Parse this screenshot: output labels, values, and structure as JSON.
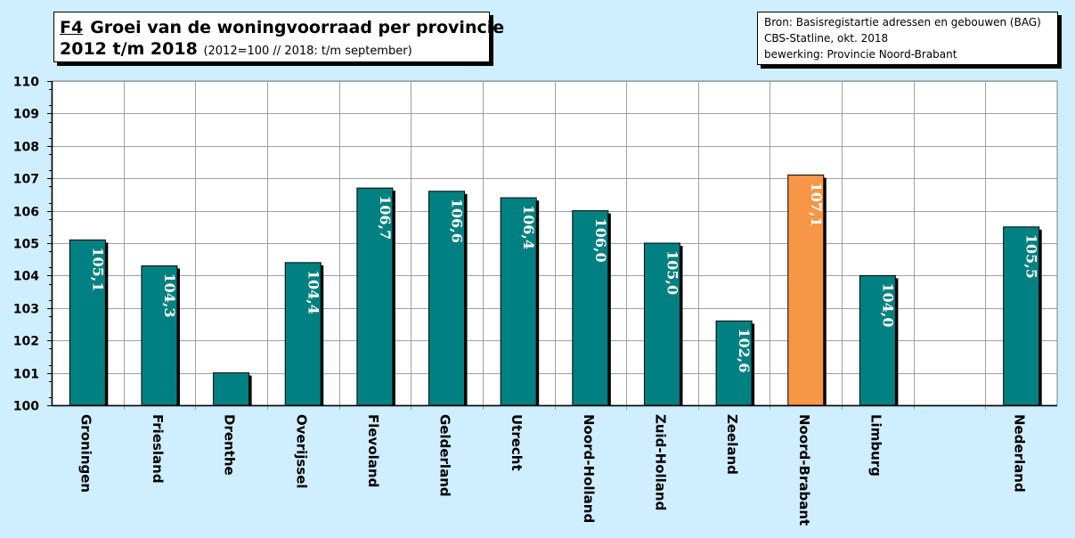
{
  "title": {
    "code": "F4",
    "line1": "Groei van de woningvoorraad per provincie",
    "line2": "2012 t/m 2018",
    "subtitle": "(2012=100  //  2018: t/m september)"
  },
  "source": {
    "lines": [
      "Bron: Basisregistartie adressen en gebouwen (BAG)",
      "CBS-Statline, okt. 2018",
      "bewerking: Provincie Noord-Brabant"
    ]
  },
  "colors": {
    "bar": "#008080",
    "highlight": "#f79646",
    "background": "#cfeeff",
    "plot": "#ffffff"
  },
  "chart_data": {
    "type": "bar",
    "categories": [
      "Groningen",
      "Friesland",
      "Drenthe",
      "Overijssel",
      "Flevoland",
      "Gelderland",
      "Utrecht",
      "Noord-Holland",
      "Zuid-Holland",
      "Zeeland",
      "Noord-Brabant",
      "Limburg",
      "",
      "Nederland"
    ],
    "values": [
      105.1,
      104.3,
      101.0,
      104.4,
      106.7,
      106.6,
      106.4,
      106.0,
      105.0,
      102.6,
      107.1,
      104.0,
      null,
      105.5
    ],
    "labels": [
      "105,1",
      "104,3",
      "",
      "104,4",
      "106,7",
      "106,6",
      "106,4",
      "106,0",
      "105,0",
      "102,6",
      "107,1",
      "104,0",
      "",
      "105,5"
    ],
    "highlight": "Noord-Brabant",
    "ylim": [
      100,
      110
    ],
    "yticks": [
      "100",
      "101",
      "102",
      "103",
      "104",
      "105",
      "106",
      "107",
      "108",
      "109",
      "110"
    ],
    "grid": true
  }
}
